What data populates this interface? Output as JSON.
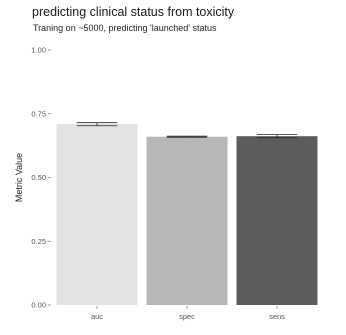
{
  "title": "predicting clinical status from toxicity",
  "subtitle": "Traning on ~5000, predicting 'launched' status",
  "chart_data": {
    "type": "bar",
    "categories": [
      "auc",
      "spec",
      "sens"
    ],
    "values": [
      0.71,
      0.66,
      0.662
    ],
    "error_low": [
      0.703,
      0.658,
      0.656
    ],
    "error_high": [
      0.715,
      0.662,
      0.668
    ],
    "bar_colors": [
      "#e3e3e3",
      "#b7b7b7",
      "#5c5c5c"
    ],
    "ylabel": "Metric Value",
    "xlabel": "",
    "ylim": [
      0,
      1
    ],
    "yticks": [
      "0.00",
      "0.25",
      "0.50",
      "0.75",
      "1.00"
    ],
    "grid": false,
    "legend": "none"
  }
}
